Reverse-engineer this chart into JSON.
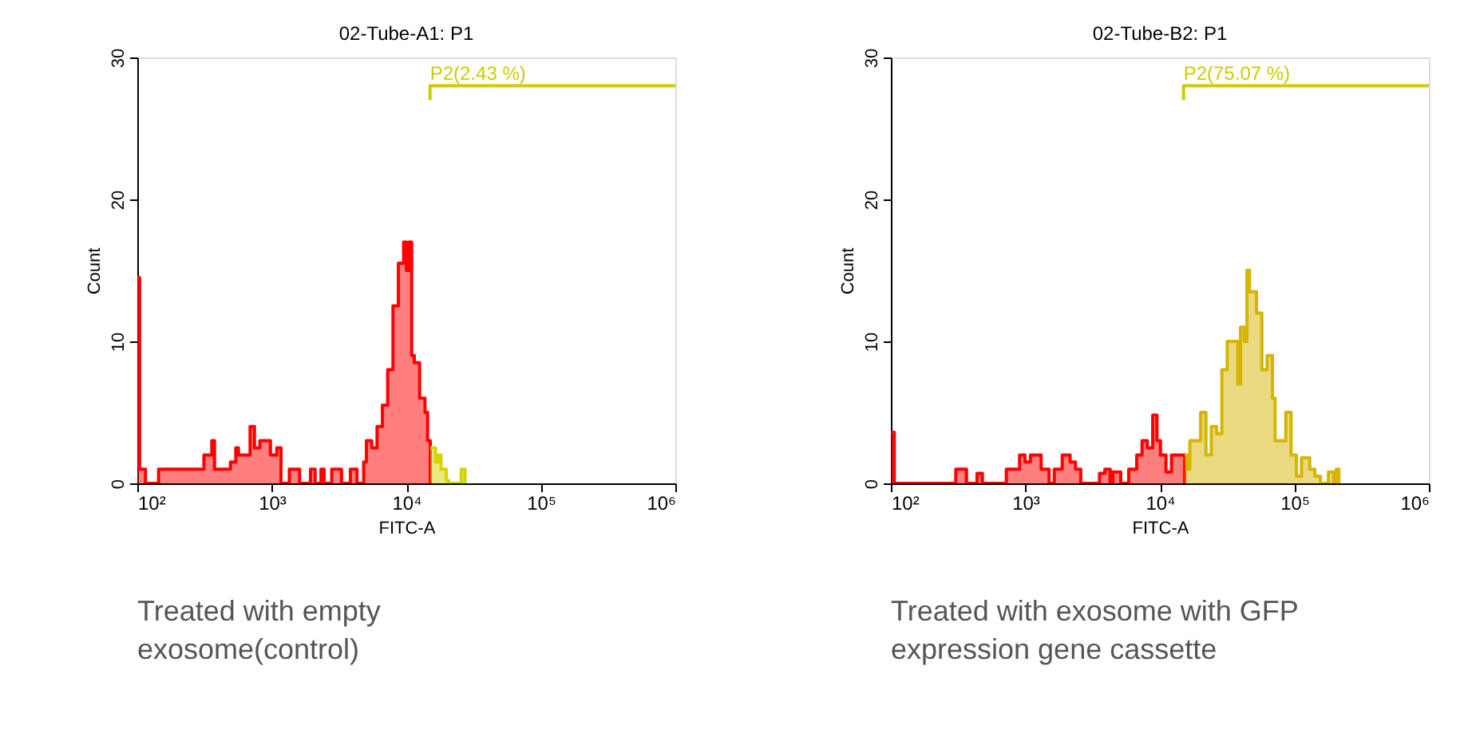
{
  "chart_data": [
    {
      "type": "area",
      "title": "02-Tube-A1: P1",
      "xlabel": "FITC-A",
      "ylabel": "Count",
      "log": "x",
      "xlim": [
        100,
        1000000
      ],
      "xticks": [
        {
          "value": 100,
          "label": "10²"
        },
        {
          "value": 1000,
          "label": "10³"
        },
        {
          "value": 10000,
          "label": "10⁴"
        },
        {
          "value": 100000,
          "label": "10⁵"
        },
        {
          "value": 1000000,
          "label": "10⁶"
        }
      ],
      "ylim": [
        0,
        30
      ],
      "yticks": [
        0,
        10,
        20,
        30
      ],
      "series": [
        {
          "color": "#ff0000",
          "x": [
            100,
            104,
            115,
            144,
            313,
            358,
            375,
            471,
            493,
            540,
            565,
            690,
            743,
            815,
            977,
            1090,
            1170,
            1350,
            1610,
            1940,
            2100,
            2320,
            2450,
            2790,
            3300,
            3840,
            4300,
            4820,
            5050,
            5530,
            6060,
            6640,
            7270,
            7960,
            8730,
            9550,
            10000,
            10470,
            10960,
            11460,
            12560,
            13760,
            14400,
            15070
          ],
          "values": [
            14.5,
            1,
            0,
            1,
            2,
            3,
            1,
            1,
            1.5,
            2.5,
            2,
            4,
            2.5,
            3,
            2,
            2.5,
            0,
            1,
            0,
            1,
            0,
            1,
            0,
            1,
            0,
            1,
            0,
            1.5,
            3,
            2.5,
            4,
            5.5,
            8,
            12.5,
            15.5,
            17,
            15,
            17,
            9,
            8.5,
            6,
            5,
            3,
            0
          ]
        },
        {
          "color": "#d4d400",
          "x": [
            15070,
            16500,
            17300,
            18100,
            19800,
            20700,
            25600,
            27300
          ],
          "values": [
            2.5,
            1.5,
            2,
            1,
            0.2,
            0,
            1,
            0
          ]
        },
        {
          "type": "line",
          "color": "#cccc00",
          "x": [
            15000,
            15000,
            1000000
          ],
          "values": [
            27,
            28,
            28
          ]
        }
      ],
      "annotations": [
        {
          "text": "P2(2.43 %)",
          "x": 15000,
          "y": 28
        },
        "Treated with empty\nexosome(control)"
      ]
    },
    {
      "type": "area",
      "title": "02-Tube-B2: P1",
      "xlabel": "FITC-A",
      "ylabel": "Count",
      "log": "x",
      "xlim": [
        100,
        1000000
      ],
      "xticks": [
        {
          "value": 100,
          "label": "10²"
        },
        {
          "value": 1000,
          "label": "10³"
        },
        {
          "value": 10000,
          "label": "10⁴"
        },
        {
          "value": 100000,
          "label": "10⁵"
        },
        {
          "value": 1000000,
          "label": "10⁶"
        }
      ],
      "ylim": [
        0,
        30
      ],
      "yticks": [
        0,
        10,
        20,
        30
      ],
      "series": [
        {
          "color": "#ff0000",
          "x": [
            100,
            106,
            304,
            365,
            437,
            479,
            722,
            906,
            993,
            1090,
            1310,
            1500,
            1640,
            1880,
            2150,
            2360,
            2580,
            2830,
            3560,
            3900,
            4270,
            4470,
            5120,
            5870,
            6730,
            7370,
            8070,
            8850,
            9510,
            10100,
            11100,
            12200,
            13300,
            15300
          ],
          "values": [
            3.6,
            0,
            1,
            0,
            0.7,
            0,
            1,
            2,
            1.5,
            2,
            1,
            0,
            1,
            2,
            1.5,
            1,
            0,
            0,
            0.7,
            1,
            0,
            0.8,
            0,
            1,
            2,
            3,
            2.5,
            4.8,
            3,
            2,
            0.8,
            2,
            2,
            0
          ]
        },
        {
          "color": "#d6b400",
          "x": [
            15300,
            16000,
            16700,
            20100,
            22000,
            24100,
            26400,
            28900,
            31700,
            34700,
            38000,
            39800,
            42400,
            44400,
            46400,
            52300,
            57300,
            62700,
            68700,
            71900,
            86300,
            94500,
            103500,
            113000,
            130000,
            142000,
            156000,
            179000,
            196000,
            205000,
            214000
          ],
          "values": [
            2,
            1,
            3,
            5,
            2,
            4,
            3.5,
            8,
            10,
            10,
            7,
            11,
            10,
            15,
            13.5,
            12,
            8,
            9,
            6,
            3,
            5,
            2,
            0.5,
            1.8,
            1,
            0.5,
            0,
            0.8,
            0,
            1,
            0
          ]
        },
        {
          "type": "line",
          "color": "#cccc00",
          "x": [
            15000,
            15000,
            1000000
          ],
          "values": [
            27,
            28,
            28
          ]
        }
      ],
      "annotations": [
        {
          "text": "P2(75.07 %)",
          "x": 15000,
          "y": 28
        },
        "Treated with exosome with GFP\nexpression gene cassette"
      ]
    }
  ]
}
